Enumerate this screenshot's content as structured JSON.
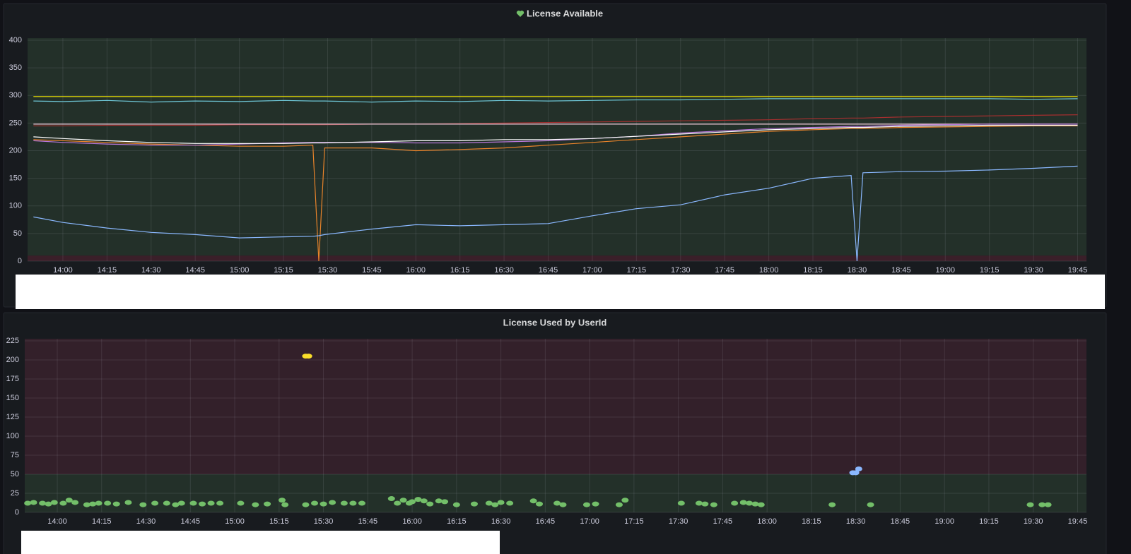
{
  "chart_data": [
    {
      "type": "line",
      "title": "License Available",
      "x": [
        "13:50",
        "14:00",
        "14:15",
        "14:30",
        "14:45",
        "15:00",
        "15:15",
        "15:25",
        "15:27",
        "15:29",
        "15:45",
        "16:00",
        "16:15",
        "16:30",
        "16:45",
        "17:00",
        "17:15",
        "17:30",
        "17:45",
        "18:00",
        "18:15",
        "18:28",
        "18:30",
        "18:32",
        "18:45",
        "19:00",
        "19:15",
        "19:30",
        "19:45"
      ],
      "xlim": [
        "13:48",
        "19:48"
      ],
      "xticks": [
        "14:00",
        "14:15",
        "14:30",
        "14:45",
        "15:00",
        "15:15",
        "15:30",
        "15:45",
        "16:00",
        "16:15",
        "16:30",
        "16:45",
        "17:00",
        "17:15",
        "17:30",
        "17:45",
        "18:00",
        "18:15",
        "18:30",
        "18:45",
        "19:00",
        "19:15",
        "19:30",
        "19:45"
      ],
      "ylim": [
        0,
        400
      ],
      "yticks": [
        0,
        50,
        100,
        150,
        200,
        250,
        300,
        350,
        400
      ],
      "grid": true,
      "threshold": 10,
      "threshold_below_color": "#3a1f29",
      "threshold_above_color": "#233029",
      "series": [
        {
          "color": "#f2e600",
          "values": [
            298,
            298,
            298,
            298,
            298,
            298,
            298,
            298,
            298,
            298,
            298,
            298,
            298,
            298,
            298,
            298,
            298,
            298,
            298,
            298,
            298,
            298,
            298,
            298,
            298,
            298,
            298,
            298,
            298
          ]
        },
        {
          "color": "#6ec6d6",
          "values": [
            290,
            289,
            291,
            288,
            290,
            289,
            291,
            290,
            290,
            290,
            288,
            290,
            289,
            291,
            290,
            291,
            292,
            292,
            293,
            294,
            294,
            294,
            294,
            294,
            294,
            294,
            294,
            293,
            294
          ]
        },
        {
          "color": "#a52f2f",
          "values": [
            245,
            245,
            246,
            246,
            246,
            247,
            247,
            247,
            247,
            247,
            248,
            248,
            249,
            250,
            251,
            252,
            253,
            254,
            255,
            256,
            258,
            259,
            259,
            259,
            261,
            262,
            263,
            264,
            265
          ]
        },
        {
          "color": "#f0c8d8",
          "values": [
            248,
            248,
            248,
            248,
            248,
            248,
            248,
            248,
            248,
            248,
            248,
            248,
            248,
            248,
            248,
            248,
            248,
            248,
            248,
            248,
            248,
            248,
            248,
            248,
            248,
            248,
            248,
            248,
            248
          ]
        },
        {
          "color": "#e8832a",
          "values": [
            220,
            218,
            215,
            212,
            210,
            208,
            208,
            210,
            0,
            205,
            205,
            200,
            202,
            205,
            210,
            215,
            220,
            225,
            230,
            235,
            238,
            240,
            240,
            240,
            242,
            243,
            244,
            245,
            245
          ]
        },
        {
          "color": "#b877d9",
          "values": [
            218,
            215,
            212,
            210,
            210,
            212,
            214,
            215,
            215,
            215,
            215,
            214,
            214,
            216,
            218,
            222,
            226,
            232,
            236,
            240,
            242,
            244,
            244,
            244,
            246,
            247,
            248,
            248,
            248
          ]
        },
        {
          "color": "#ffffff",
          "values": [
            225,
            222,
            218,
            215,
            213,
            213,
            213,
            214,
            214,
            214,
            216,
            218,
            218,
            220,
            220,
            222,
            226,
            230,
            234,
            238,
            240,
            242,
            242,
            242,
            244,
            245,
            246,
            246,
            246
          ]
        },
        {
          "color": "#8ab8ff",
          "values": [
            80,
            70,
            60,
            52,
            48,
            42,
            44,
            45,
            46,
            48,
            58,
            66,
            64,
            66,
            68,
            82,
            95,
            102,
            120,
            132,
            150,
            155,
            0,
            160,
            162,
            163,
            165,
            168,
            172
          ]
        }
      ]
    },
    {
      "type": "scatter",
      "title": "License Used by UserId",
      "xlim": [
        "13:49",
        "19:48"
      ],
      "xticks": [
        "14:00",
        "14:15",
        "14:30",
        "14:45",
        "15:00",
        "15:15",
        "15:30",
        "15:45",
        "16:00",
        "16:15",
        "16:30",
        "16:45",
        "17:00",
        "17:15",
        "17:30",
        "17:45",
        "18:00",
        "18:15",
        "18:30",
        "18:45",
        "19:00",
        "19:15",
        "19:30",
        "19:45"
      ],
      "ylim": [
        0,
        225
      ],
      "yticks": [
        0,
        25,
        50,
        75,
        100,
        125,
        150,
        175,
        200,
        225
      ],
      "grid": true,
      "threshold": 50,
      "threshold_below_color": "#233029",
      "threshold_above_color": "#33202a",
      "series": [
        {
          "color": "#73bf69",
          "x": [
            "13:50",
            "13:52",
            "13:55",
            "13:57",
            "13:59",
            "14:02",
            "14:04",
            "14:06",
            "14:10",
            "14:12",
            "14:14",
            "14:17",
            "14:20",
            "14:24",
            "14:29",
            "14:33",
            "14:37",
            "14:40",
            "14:42",
            "14:46",
            "14:49",
            "14:52",
            "14:55",
            "15:02",
            "15:07",
            "15:11",
            "15:16",
            "15:17",
            "15:24",
            "15:27",
            "15:30",
            "15:33",
            "15:37",
            "15:40",
            "15:43",
            "15:53",
            "15:55",
            "15:57",
            "15:59",
            "16:00",
            "16:02",
            "16:04",
            "16:06",
            "16:09",
            "16:11",
            "16:15",
            "16:21",
            "16:26",
            "16:28",
            "16:30",
            "16:33",
            "16:41",
            "16:43",
            "16:49",
            "16:51",
            "16:59",
            "17:02",
            "17:10",
            "17:12",
            "17:31",
            "17:37",
            "17:39",
            "17:42",
            "17:49",
            "17:52",
            "17:54",
            "17:56",
            "17:58",
            "18:22",
            "18:35",
            "19:29",
            "19:33",
            "19:35"
          ],
          "values": [
            12,
            13,
            12,
            11,
            13,
            12,
            16,
            13,
            10,
            11,
            12,
            12,
            11,
            13,
            10,
            12,
            12,
            10,
            12,
            12,
            11,
            12,
            12,
            12,
            10,
            11,
            16,
            10,
            10,
            12,
            11,
            13,
            12,
            12,
            12,
            18,
            12,
            16,
            12,
            14,
            17,
            15,
            11,
            15,
            14,
            10,
            11,
            12,
            10,
            13,
            12,
            15,
            11,
            12,
            10,
            10,
            11,
            10,
            16,
            12,
            12,
            11,
            10,
            12,
            13,
            12,
            11,
            10,
            10,
            10,
            10,
            10,
            10
          ]
        },
        {
          "color": "#fade2a",
          "x": [
            "15:24",
            "15:25"
          ],
          "values": [
            205,
            205
          ]
        },
        {
          "color": "#8ab8ff",
          "x": [
            "18:29",
            "18:30",
            "18:31"
          ],
          "values": [
            52,
            52,
            57
          ]
        }
      ]
    }
  ]
}
